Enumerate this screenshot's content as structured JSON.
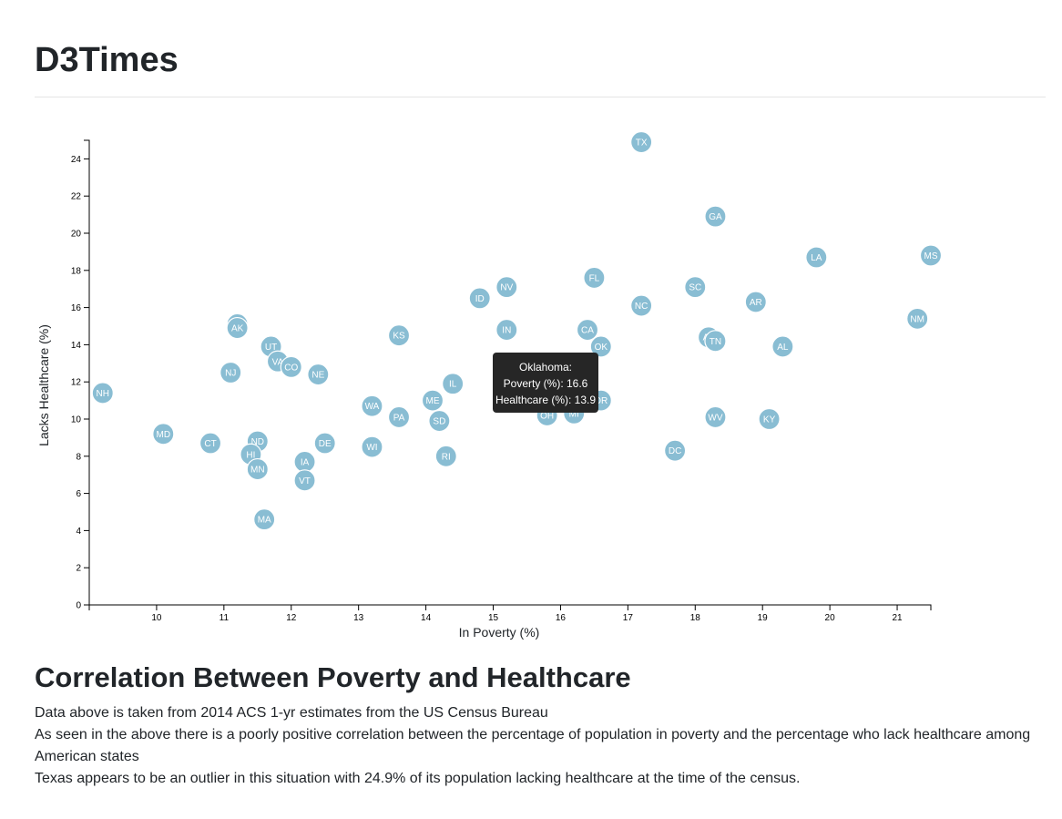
{
  "header": {
    "title": "D3Times"
  },
  "chart_data": {
    "type": "scatter",
    "title": "",
    "xlabel": "In Poverty (%)",
    "ylabel": "Lacks Healthcare (%)",
    "xlim": [
      9.0,
      21.5
    ],
    "ylim": [
      0,
      25
    ],
    "x_ticks": [
      10,
      11,
      12,
      13,
      14,
      15,
      16,
      17,
      18,
      19,
      20,
      21
    ],
    "y_ticks": [
      0,
      2,
      4,
      6,
      8,
      10,
      12,
      14,
      16,
      18,
      20,
      22,
      24
    ],
    "grid": false,
    "marker_color": "#89bdd3",
    "label_color": "#ffffff",
    "points": [
      {
        "abbr": "TX",
        "x": 17.2,
        "y": 24.9
      },
      {
        "abbr": "GA",
        "x": 18.3,
        "y": 20.9
      },
      {
        "abbr": "MS",
        "x": 21.5,
        "y": 18.8
      },
      {
        "abbr": "LA",
        "x": 19.8,
        "y": 18.7
      },
      {
        "abbr": "FL",
        "x": 16.5,
        "y": 17.6
      },
      {
        "abbr": "NV",
        "x": 15.2,
        "y": 17.1
      },
      {
        "abbr": "SC",
        "x": 18.0,
        "y": 17.1
      },
      {
        "abbr": "ID",
        "x": 14.8,
        "y": 16.5
      },
      {
        "abbr": "AR",
        "x": 18.9,
        "y": 16.3
      },
      {
        "abbr": "NC",
        "x": 17.2,
        "y": 16.1
      },
      {
        "abbr": "NM",
        "x": 21.3,
        "y": 15.4
      },
      {
        "abbr": "WY",
        "x": 11.2,
        "y": 15.1
      },
      {
        "abbr": "AK",
        "x": 11.2,
        "y": 14.9
      },
      {
        "abbr": "IN",
        "x": 15.2,
        "y": 14.8
      },
      {
        "abbr": "CA",
        "x": 16.4,
        "y": 14.8
      },
      {
        "abbr": "KS",
        "x": 13.6,
        "y": 14.5
      },
      {
        "abbr": "AZ",
        "x": 18.2,
        "y": 14.4
      },
      {
        "abbr": "TN",
        "x": 18.3,
        "y": 14.2
      },
      {
        "abbr": "UT",
        "x": 11.7,
        "y": 13.9
      },
      {
        "abbr": "OK",
        "x": 16.6,
        "y": 13.9
      },
      {
        "abbr": "AL",
        "x": 19.3,
        "y": 13.9
      },
      {
        "abbr": "VA",
        "x": 11.8,
        "y": 13.1
      },
      {
        "abbr": "CO",
        "x": 12.0,
        "y": 12.8
      },
      {
        "abbr": "MT",
        "x": 15.4,
        "y": 12.9
      },
      {
        "abbr": "NJ",
        "x": 11.1,
        "y": 12.5
      },
      {
        "abbr": "NE",
        "x": 12.4,
        "y": 12.4
      },
      {
        "abbr": "IL",
        "x": 14.4,
        "y": 11.9
      },
      {
        "abbr": "NH",
        "x": 9.2,
        "y": 11.4
      },
      {
        "abbr": "MO",
        "x": 15.6,
        "y": 11.4
      },
      {
        "abbr": "ME",
        "x": 14.1,
        "y": 11.0
      },
      {
        "abbr": "OR",
        "x": 16.6,
        "y": 11.0
      },
      {
        "abbr": "WA",
        "x": 13.2,
        "y": 10.7
      },
      {
        "abbr": "NY",
        "x": 15.7,
        "y": 10.9
      },
      {
        "abbr": "OH",
        "x": 15.8,
        "y": 10.2
      },
      {
        "abbr": "MI",
        "x": 16.2,
        "y": 10.3
      },
      {
        "abbr": "PA",
        "x": 13.6,
        "y": 10.1
      },
      {
        "abbr": "WV",
        "x": 18.3,
        "y": 10.1
      },
      {
        "abbr": "KY",
        "x": 19.1,
        "y": 10.0
      },
      {
        "abbr": "SD",
        "x": 14.2,
        "y": 9.9
      },
      {
        "abbr": "MD",
        "x": 10.1,
        "y": 9.2
      },
      {
        "abbr": "CT",
        "x": 10.8,
        "y": 8.7
      },
      {
        "abbr": "ND",
        "x": 11.5,
        "y": 8.8
      },
      {
        "abbr": "DE",
        "x": 12.5,
        "y": 8.7
      },
      {
        "abbr": "WI",
        "x": 13.2,
        "y": 8.5
      },
      {
        "abbr": "DC",
        "x": 17.7,
        "y": 8.3
      },
      {
        "abbr": "HI",
        "x": 11.4,
        "y": 8.1
      },
      {
        "abbr": "RI",
        "x": 14.3,
        "y": 8.0
      },
      {
        "abbr": "IA",
        "x": 12.2,
        "y": 7.7
      },
      {
        "abbr": "MN",
        "x": 11.5,
        "y": 7.3
      },
      {
        "abbr": "VT",
        "x": 12.2,
        "y": 6.7
      },
      {
        "abbr": "MA",
        "x": 11.6,
        "y": 4.6
      }
    ],
    "tooltip": {
      "title": "Oklahoma:",
      "poverty_line": "Poverty (%): 16.6",
      "healthcare_line": "Healthcare (%): 13.9",
      "background": "#262626"
    }
  },
  "analysis": {
    "heading": "Correlation Between Poverty and Healthcare",
    "source_line": "Data above is taken from 2014 ACS 1-yr estimates from the US Census Bureau",
    "correlation_line": "As seen in the above there is a poorly positive correlation between the percentage of population in poverty and the percentage who lack healthcare among American states",
    "outlier_line": "Texas appears to be an outlier in this situation with 24.9% of its population lacking healthcare at the time of the census."
  }
}
